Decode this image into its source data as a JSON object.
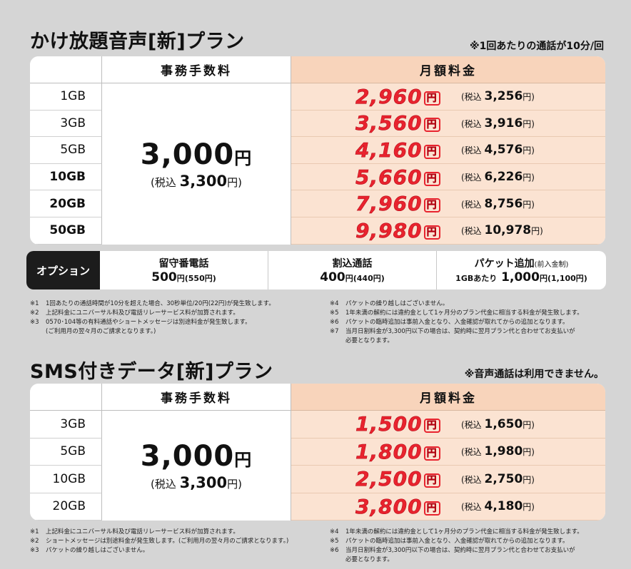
{
  "section1": {
    "title": "かけ放題音声[新]プラン",
    "note": "※1回あたりの通話が10分/回",
    "header_fee": "事務手数料",
    "header_monthly": "月額料金",
    "fee_main": "3,000",
    "fee_unit": "円",
    "fee_tax_prefix": "(税込",
    "fee_tax_value": "3,300",
    "fee_tax_suffix": "円)",
    "rows": [
      {
        "gb": "1GB",
        "price": "2,960",
        "tax": "3,256"
      },
      {
        "gb": "3GB",
        "price": "3,560",
        "tax": "3,916"
      },
      {
        "gb": "5GB",
        "price": "4,160",
        "tax": "4,576"
      },
      {
        "gb": "10GB",
        "price": "5,660",
        "tax": "6,226"
      },
      {
        "gb": "20GB",
        "price": "7,960",
        "tax": "8,756"
      },
      {
        "gb": "50GB",
        "price": "9,980",
        "tax": "10,978"
      }
    ]
  },
  "price_unit": "円",
  "tax_prefix": "(税込",
  "tax_suffix": "円)",
  "option": {
    "label": "オプション",
    "items": [
      {
        "name": "留守番電話",
        "price": "500",
        "tax": "(550円)"
      },
      {
        "name": "割込通話",
        "price": "400",
        "tax": "(440円)"
      },
      {
        "name": "パケット追加",
        "name_note": "(前入金制)",
        "price_prefix": "1GBあたり",
        "price": "1,000",
        "tax": "(1,100円)"
      }
    ],
    "unit": "円"
  },
  "notes1_left": [
    {
      "num": "※1",
      "text": "1回あたりの通話時間が10分を超えた場合、30秒単位/20円(22円)が発生致します。"
    },
    {
      "num": "※2",
      "text": "上記料金にユニバーサル料及び電話リレーサービス料が加算されます。"
    },
    {
      "num": "※3",
      "text": "0570･104等の有料通話やショートメッセージは別途料金が発生致します。"
    },
    {
      "num": "",
      "text": "(ご利用月の翌々月のご請求となります。)"
    }
  ],
  "notes1_right": [
    {
      "num": "※4",
      "text": "パケットの繰り越しはございません。"
    },
    {
      "num": "※5",
      "text": "1年未満の解約には違約金として1ヶ月分のプラン代金に相当する料金が発生致します。"
    },
    {
      "num": "※6",
      "text": "パケットの臨時追加は事前入金となり、入金確認が取れてからの追加となります。"
    },
    {
      "num": "※7",
      "text": "当月日割料金が3,300円以下の場合は、契約時に翌月プラン代と合わせてお支払いが"
    },
    {
      "num": "",
      "text": "必要となります。"
    }
  ],
  "section2": {
    "title": "SMS付きデータ[新]プラン",
    "note": "※音声通話は利用できません。",
    "header_fee": "事務手数料",
    "header_monthly": "月額料金",
    "fee_main": "3,000",
    "fee_unit": "円",
    "fee_tax_prefix": "(税込",
    "fee_tax_value": "3,300",
    "fee_tax_suffix": "円)",
    "rows": [
      {
        "gb": "3GB",
        "price": "1,500",
        "tax": "1,650"
      },
      {
        "gb": "5GB",
        "price": "1,800",
        "tax": "1,980"
      },
      {
        "gb": "10GB",
        "price": "2,500",
        "tax": "2,750"
      },
      {
        "gb": "20GB",
        "price": "3,800",
        "tax": "4,180"
      }
    ]
  },
  "notes2_left": [
    {
      "num": "※1",
      "text": "上記料金にユニバーサル料及び電話リレーサービス料が加算されます。"
    },
    {
      "num": "※2",
      "text": "ショートメッセージは別途料金が発生致します。(ご利用月の翌々月のご請求となります。)"
    },
    {
      "num": "※3",
      "text": "パケットの繰り越しはございません。"
    }
  ],
  "notes2_right": [
    {
      "num": "※4",
      "text": "1年未満の解約には違約金として1ヶ月分のプラン代金に相当する料金が発生致します。"
    },
    {
      "num": "※5",
      "text": "パケットの臨時追加は事前入金となり、入金確認が取れてからの追加となります。"
    },
    {
      "num": "※6",
      "text": "当月日割料金が3,300円以下の場合は、契約時に翌月プラン代と合わせてお支払いが"
    },
    {
      "num": "",
      "text": "必要となります。"
    }
  ]
}
